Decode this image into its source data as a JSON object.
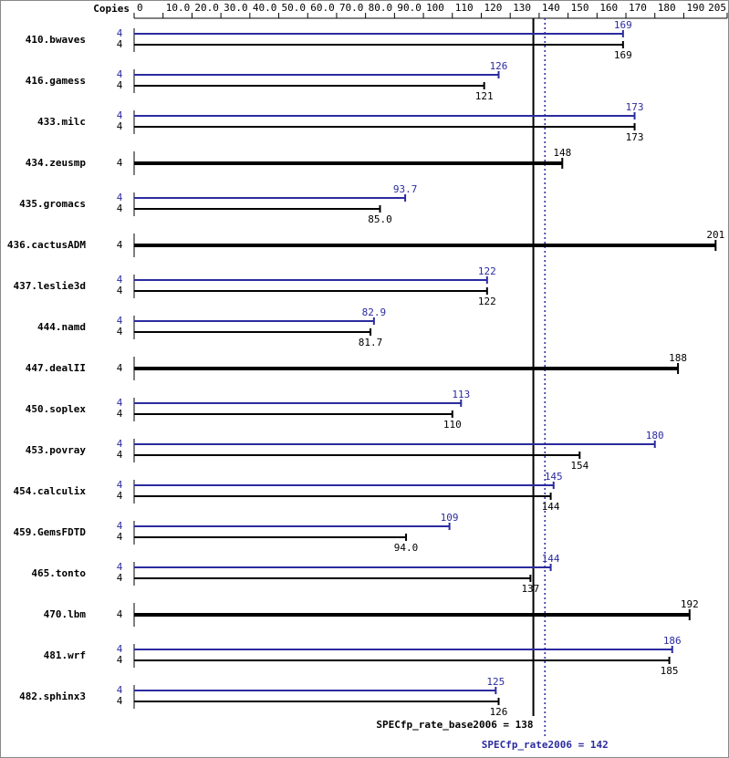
{
  "chart_data": {
    "type": "bar",
    "orientation": "horizontal",
    "copies_label": "Copies",
    "categories": [
      "410.bwaves",
      "416.gamess",
      "433.milc",
      "434.zeusmp",
      "435.gromacs",
      "436.cactusADM",
      "437.leslie3d",
      "444.namd",
      "447.dealII",
      "450.soplex",
      "453.povray",
      "454.calculix",
      "459.GemsFDTD",
      "465.tonto",
      "470.lbm",
      "481.wrf",
      "482.sphinx3"
    ],
    "series": [
      {
        "color": "#2b2ba0",
        "copies": [
          4,
          4,
          4,
          null,
          4,
          null,
          4,
          4,
          null,
          4,
          4,
          4,
          4,
          4,
          null,
          4,
          4
        ],
        "values": [
          169,
          126,
          173,
          null,
          93.7,
          null,
          122,
          82.9,
          null,
          113,
          180,
          145,
          109,
          144,
          null,
          186,
          125
        ],
        "value_labels": [
          "169",
          "126",
          "173",
          null,
          "93.7",
          null,
          "122",
          "82.9",
          null,
          "113",
          "180",
          "145",
          "109",
          "144",
          null,
          "186",
          "125"
        ]
      },
      {
        "color": "#000000",
        "copies": [
          4,
          4,
          4,
          4,
          4,
          4,
          4,
          4,
          4,
          4,
          4,
          4,
          4,
          4,
          4,
          4,
          4
        ],
        "values": [
          169,
          121,
          173,
          148,
          85,
          201,
          122,
          81.7,
          188,
          110,
          154,
          144,
          94,
          137,
          192,
          185,
          126
        ],
        "value_labels": [
          "169",
          "121",
          "173",
          "148",
          "85.0",
          "201",
          "122",
          "81.7",
          "188",
          "110",
          "154",
          "144",
          "94.0",
          "137",
          "192",
          "185",
          "126"
        ]
      }
    ],
    "reference_lines": [
      {
        "label": "SPECfp_rate_base2006 = 138",
        "value": 138,
        "color": "#000000",
        "style": "solid"
      },
      {
        "label": "SPECfp_rate2006 = 142",
        "value": 142,
        "color": "#2b2ba0",
        "style": "dotted"
      }
    ],
    "xlim": [
      0,
      205
    ],
    "xticks": [
      0,
      {
        "value": 10,
        "label": "10.0"
      },
      {
        "value": 20,
        "label": "20.0"
      },
      {
        "value": 30,
        "label": "30.0"
      },
      {
        "value": 40,
        "label": "40.0"
      },
      {
        "value": 50,
        "label": "50.0"
      },
      {
        "value": 60,
        "label": "60.0"
      },
      {
        "value": 70,
        "label": "70.0"
      },
      {
        "value": 80,
        "label": "80.0"
      },
      {
        "value": 90,
        "label": "90.0"
      },
      100,
      110,
      120,
      130,
      140,
      150,
      160,
      170,
      180,
      190,
      205
    ]
  }
}
